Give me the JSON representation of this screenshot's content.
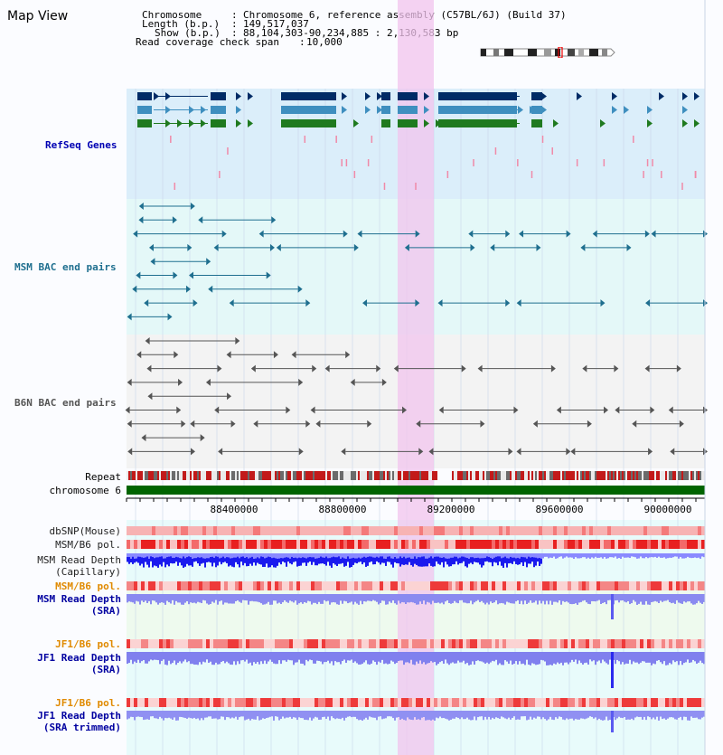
{
  "page_title": "Map View",
  "header": {
    "chromosome_label": "Chromosome",
    "chromosome_value": "Chromosome 6, reference assembly (C57BL/6J) (Build 37)",
    "length_label": "Length (b.p.)",
    "length_value": "149,517,037",
    "show_label": "Show (b.p.)",
    "show_value": "88,104,303-90,234,885 : 2,130,583 bp",
    "coverage_label": "Read coverage check span",
    "coverage_value": "10,000"
  },
  "tracks": {
    "refseq": "RefSeq Genes",
    "msm_bac": "MSM BAC end pairs",
    "b6n_bac": "B6N BAC end pairs",
    "repeat": "Repeat",
    "chromosome": "chromosome 6",
    "dbsnp": "dbSNP(Mouse)",
    "msm_b6_pol": "MSM/B6 pol.",
    "msm_depth_cap_1": "MSM Read Depth",
    "msm_depth_cap_2": "(Capillary)",
    "msm_b6_pol_sra": "MSM/B6 pol.",
    "msm_depth_sra_1": "MSM Read Depth",
    "msm_depth_sra_2": "(SRA)",
    "jf1_b6_pol": "JF1/B6 pol.",
    "jf1_depth_sra_1": "JF1 Read Depth",
    "jf1_depth_sra_2": "(SRA)",
    "jf1_b6_pol_trim": "JF1/B6 pol.",
    "jf1_depth_trim_1": "JF1 Read Depth",
    "jf1_depth_trim_2": "(SRA trimmed)"
  },
  "axis": {
    "ticks": [
      "88400000",
      "88800000",
      "89200000",
      "89600000",
      "90000000"
    ]
  },
  "colors": {
    "refseq_bg": "#dbeefa",
    "msm_bac_bg": "#e4f8f8",
    "b6n_bac_bg": "#f3f3f3",
    "highlight": "#f2c4ee",
    "refseq_label": "#0000b3",
    "msm_bac_label": "#1f6f8f",
    "orange_label": "#e08a00",
    "navy_label": "#0000a0",
    "chromosome_bar": "#006400"
  }
}
